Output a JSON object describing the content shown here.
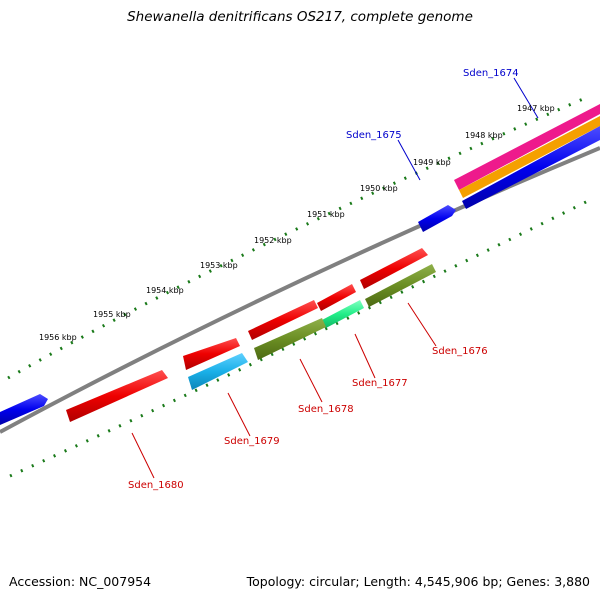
{
  "title": "Shewanella denitrificans OS217, complete genome",
  "footer": {
    "accession": "Accession: NC_007954",
    "summary": "Topology: circular; Length: 4,545,906 bp; Genes: 3,880"
  },
  "scale_labels": [
    "1947 kbp",
    "1948 kbp",
    "1949 kbp",
    "1950 kbp",
    "1951 kbp",
    "1952 kbp",
    "1953 kbp",
    "1954 kbp",
    "1955 kbp",
    "1956 kbp"
  ],
  "gene_labels": [
    {
      "text": "Sden_1674",
      "color": "#0000cc"
    },
    {
      "text": "Sden_1675",
      "color": "#0000cc"
    },
    {
      "text": "Sden_1676",
      "color": "#cc0000"
    },
    {
      "text": "Sden_1677",
      "color": "#cc0000"
    },
    {
      "text": "Sden_1678",
      "color": "#cc0000"
    },
    {
      "text": "Sden_1679",
      "color": "#cc0000"
    },
    {
      "text": "Sden_1680",
      "color": "#cc0000"
    }
  ],
  "colors": {
    "backbone": "#808080",
    "tick": "#1a7a1a",
    "forward_gene": "#0000ee",
    "reverse_gene": "#ee0000",
    "olive": "#6b8e23",
    "cyan": "#1ab0e8",
    "green_light": "#22ee88",
    "magenta": "#ee1a8c",
    "orange": "#f5a000",
    "leader_red": "#cc0000",
    "leader_blue": "#0000cc"
  }
}
